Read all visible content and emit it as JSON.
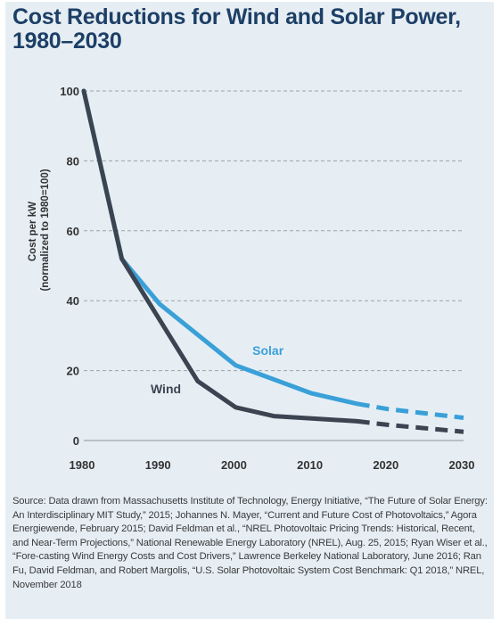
{
  "colors": {
    "background": "#e6eef4",
    "title": "#1d3f66",
    "wind": "#3b4450",
    "solar": "#3aa0d8",
    "grid": "#9aa3ab"
  },
  "chart_data": {
    "type": "line",
    "title_lines": [
      "Cost Reductions for Wind and Solar Power,",
      "1980–2030"
    ],
    "ylabel_lines": [
      "Cost per kW",
      "(normalized to 1980=100)"
    ],
    "xlabel": "",
    "xlim": [
      1980,
      2030
    ],
    "ylim": [
      0,
      100
    ],
    "x_ticks": [
      1980,
      1990,
      2000,
      2010,
      2020,
      2030
    ],
    "y_ticks": [
      0,
      20,
      40,
      60,
      80,
      100
    ],
    "grid": "horizontal dashed",
    "series": [
      {
        "name": "Solar",
        "color": "#3aa0d8",
        "points": [
          [
            1980,
            100
          ],
          [
            1985,
            52
          ],
          [
            1990,
            39
          ],
          [
            2000,
            21.5
          ],
          [
            2010,
            13.5
          ],
          [
            2016,
            10.5
          ]
        ],
        "projection": [
          [
            2016,
            10.5
          ],
          [
            2020,
            9
          ],
          [
            2030,
            6.5
          ]
        ]
      },
      {
        "name": "Wind",
        "color": "#3b4450",
        "points": [
          [
            1980,
            100
          ],
          [
            1985,
            52
          ],
          [
            1995,
            17
          ],
          [
            2000,
            9.5
          ],
          [
            2005,
            7
          ],
          [
            2016,
            5.5
          ]
        ],
        "projection": [
          [
            2016,
            5.5
          ],
          [
            2020,
            4.5
          ],
          [
            2030,
            2.5
          ]
        ]
      }
    ]
  },
  "source": "Source: Data drawn from Massachusetts Institute of Technology, Energy Initiative, “The Future of Solar Energy: An Interdisciplinary MIT Study,” 2015; Johannes N. Mayer, “Current and Future Cost of Photovoltaics,” Agora Energiewende, February 2015; David Feldman et al., “NREL Photovoltaic Pricing Trends: Historical, Recent, and Near-Term Projections,” National Renewable Energy Laboratory (NREL), Aug. 25, 2015; Ryan Wiser et al., “Fore-casting Wind Energy Costs and Cost Drivers,” Lawrence Berkeley National Laboratory, June 2016; Ran Fu, David Feldman, and Robert Margolis, “U.S. Solar Photovoltaic System Cost Benchmark: Q1 2018,” NREL, November 2018"
}
